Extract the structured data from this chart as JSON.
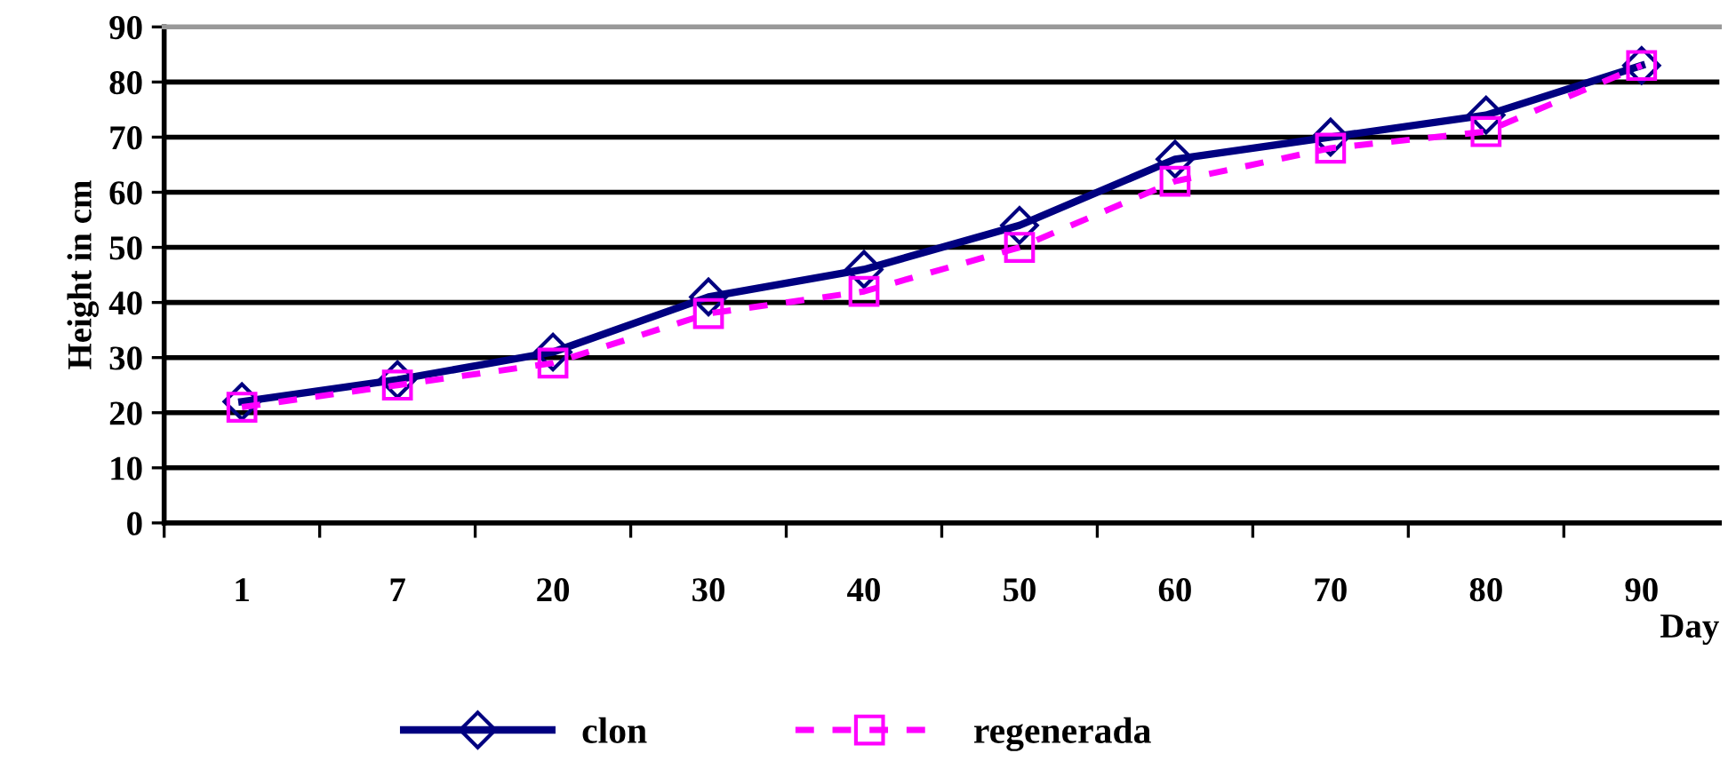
{
  "chart_data": {
    "type": "line",
    "xlabel": "Day",
    "ylabel": "Height in cm",
    "categories": [
      "1",
      "7",
      "20",
      "30",
      "40",
      "50",
      "60",
      "70",
      "80",
      "90"
    ],
    "series": [
      {
        "name": "clon",
        "color": "#000080",
        "values": [
          22,
          26,
          31,
          41,
          46,
          54,
          66,
          70,
          74,
          83
        ],
        "marker": "diamond",
        "line_style": "solid"
      },
      {
        "name": "regenerada",
        "color": "#ff00ff",
        "values": [
          21,
          25,
          29,
          38,
          42,
          50,
          62,
          68,
          71,
          83
        ],
        "marker": "square",
        "line_style": "dashed"
      }
    ],
    "ylim": [
      0,
      90
    ],
    "yticks": [
      0,
      10,
      20,
      30,
      40,
      50,
      60,
      70,
      80,
      90
    ],
    "grid": "y",
    "legend": "bottom"
  }
}
